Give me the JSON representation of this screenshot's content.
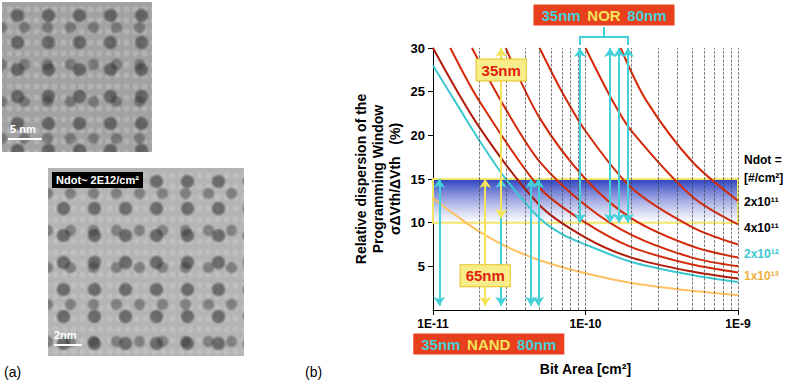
{
  "panel_labels": [
    "(a)",
    "(b)"
  ],
  "images": [
    {
      "scale_bar": "5 nm"
    },
    {
      "caption": "Ndot~ 2E12/cm²",
      "scale_bar": "2nm"
    }
  ],
  "chart_data": {
    "type": "line",
    "log": "x",
    "grid": true,
    "x_label": "Bit Area [cm²]",
    "y_label": [
      "Relative dispersion of the",
      "Programming Window",
      "σΔVth/ΔVth   (%)"
    ],
    "xlim": [
      1e-11,
      1e-09
    ],
    "xticks": [
      {
        "value": 1e-11,
        "label": "1E-11"
      },
      {
        "value": 1e-10,
        "label": "1E-10"
      },
      {
        "value": 1e-09,
        "label": "1E-9"
      }
    ],
    "ylim": [
      0,
      30
    ],
    "yticks": [
      5,
      10,
      15,
      20,
      25,
      30
    ],
    "target_band": [
      10,
      15
    ],
    "series": [
      {
        "color": "#d42a0a",
        "x": [
          1.7e-10,
          2.5e-10,
          5e-10,
          1e-09
        ],
        "values": [
          30,
          24,
          17,
          12.5
        ]
      },
      {
        "color": "#d42a0a",
        "x": [
          1e-10,
          1.5e-10,
          2e-10,
          5e-10,
          1e-09
        ],
        "values": [
          30,
          24,
          20.5,
          13,
          9.8
        ]
      },
      {
        "color": "#d42a0a",
        "x": [
          5e-11,
          7e-11,
          1e-10,
          2e-10,
          5e-10,
          1e-09
        ],
        "values": [
          30,
          25,
          20.5,
          14,
          9.5,
          7.5
        ]
      },
      {
        "color": "#d42a0a",
        "x": [
          3e-11,
          5e-11,
          1e-10,
          2e-10,
          5e-10,
          1e-09
        ],
        "values": [
          30,
          22,
          15,
          10.5,
          7.3,
          6
        ]
      },
      {
        "color": "#d42a0a",
        "x": [
          1.8e-11,
          3e-11,
          5e-11,
          1e-10,
          2e-10,
          5e-10,
          1e-09
        ],
        "values": [
          30,
          23,
          17,
          12,
          8.6,
          6,
          5
        ]
      },
      {
        "color": "#d42a0a",
        "x": [
          1.3e-11,
          2e-11,
          5e-11,
          1e-10,
          2e-10,
          5e-10,
          1e-09
        ],
        "values": [
          30,
          24,
          14,
          10,
          7.2,
          5.2,
          4.3
        ]
      },
      {
        "color": "#b01a08",
        "x": [
          1e-11,
          2e-11,
          5e-11,
          1e-10,
          2e-10,
          5e-10,
          1e-09
        ],
        "values": [
          30,
          21,
          12,
          8.3,
          6,
          4.4,
          3.6
        ]
      },
      {
        "color": "#3cc8d0",
        "x": [
          1e-11,
          1.5e-11,
          2e-11,
          3e-11,
          5e-11,
          7e-11,
          1e-10,
          2e-10,
          5e-10,
          1e-09
        ],
        "values": [
          28,
          23,
          19.5,
          15,
          10.5,
          8.7,
          7.5,
          5.5,
          4,
          3.2
        ]
      },
      {
        "color": "#ffc060",
        "x": [
          1e-11,
          1.5e-11,
          2e-11,
          3e-11,
          5e-11,
          1e-10,
          2e-10,
          5e-10,
          1e-09
        ],
        "values": [
          12.8,
          10.5,
          9,
          7.3,
          5.7,
          4.2,
          3.1,
          2.2,
          1.7
        ]
      }
    ],
    "ndot_labels": {
      "title": [
        "Ndot =",
        "[#/cm²]"
      ],
      "items": [
        {
          "text": "2x10¹¹",
          "color": "#000000"
        },
        {
          "text": "4x10¹¹",
          "color": "#000000"
        },
        {
          "text": "2x10¹²",
          "color": "#3cc8d0"
        },
        {
          "text": "1x10¹³",
          "color": "#f0b040"
        }
      ]
    },
    "annotations": [
      {
        "texts": [
          "35nm",
          "NOR",
          "80nm"
        ],
        "color": "#43d0d8",
        "arrows": [
          {
            "x": 9.2e-11,
            "y": [
              30,
              10
            ]
          },
          {
            "x": 1.45e-10,
            "y": [
              30,
              10
            ]
          },
          {
            "x": 1.66e-10,
            "y": [
              30,
              10
            ]
          },
          {
            "x": 1.9e-10,
            "y": [
              30,
              10
            ]
          }
        ]
      },
      {
        "texts": [
          "35nm",
          "NAND",
          "80nm"
        ],
        "color": "#43d0d8",
        "arrows": [
          {
            "x": 1.1e-11,
            "y": [
              15,
              0.5
            ]
          },
          {
            "x": 2.8e-11,
            "y": [
              15,
              0.5
            ]
          },
          {
            "x": 4.4e-11,
            "y": [
              15,
              0.5
            ]
          },
          {
            "x": 4.9e-11,
            "y": [
              15,
              0.5
            ]
          }
        ]
      },
      {
        "texts": [
          "35nm"
        ],
        "color": "#f3e35a",
        "arrows": [
          {
            "x": 2.8e-11,
            "y": [
              30,
              10.5
            ]
          }
        ]
      },
      {
        "texts": [
          "65nm"
        ],
        "color": "#f3e35a",
        "arrows": [
          {
            "x": 2.2e-11,
            "y": [
              15,
              0.5
            ]
          }
        ]
      }
    ]
  }
}
